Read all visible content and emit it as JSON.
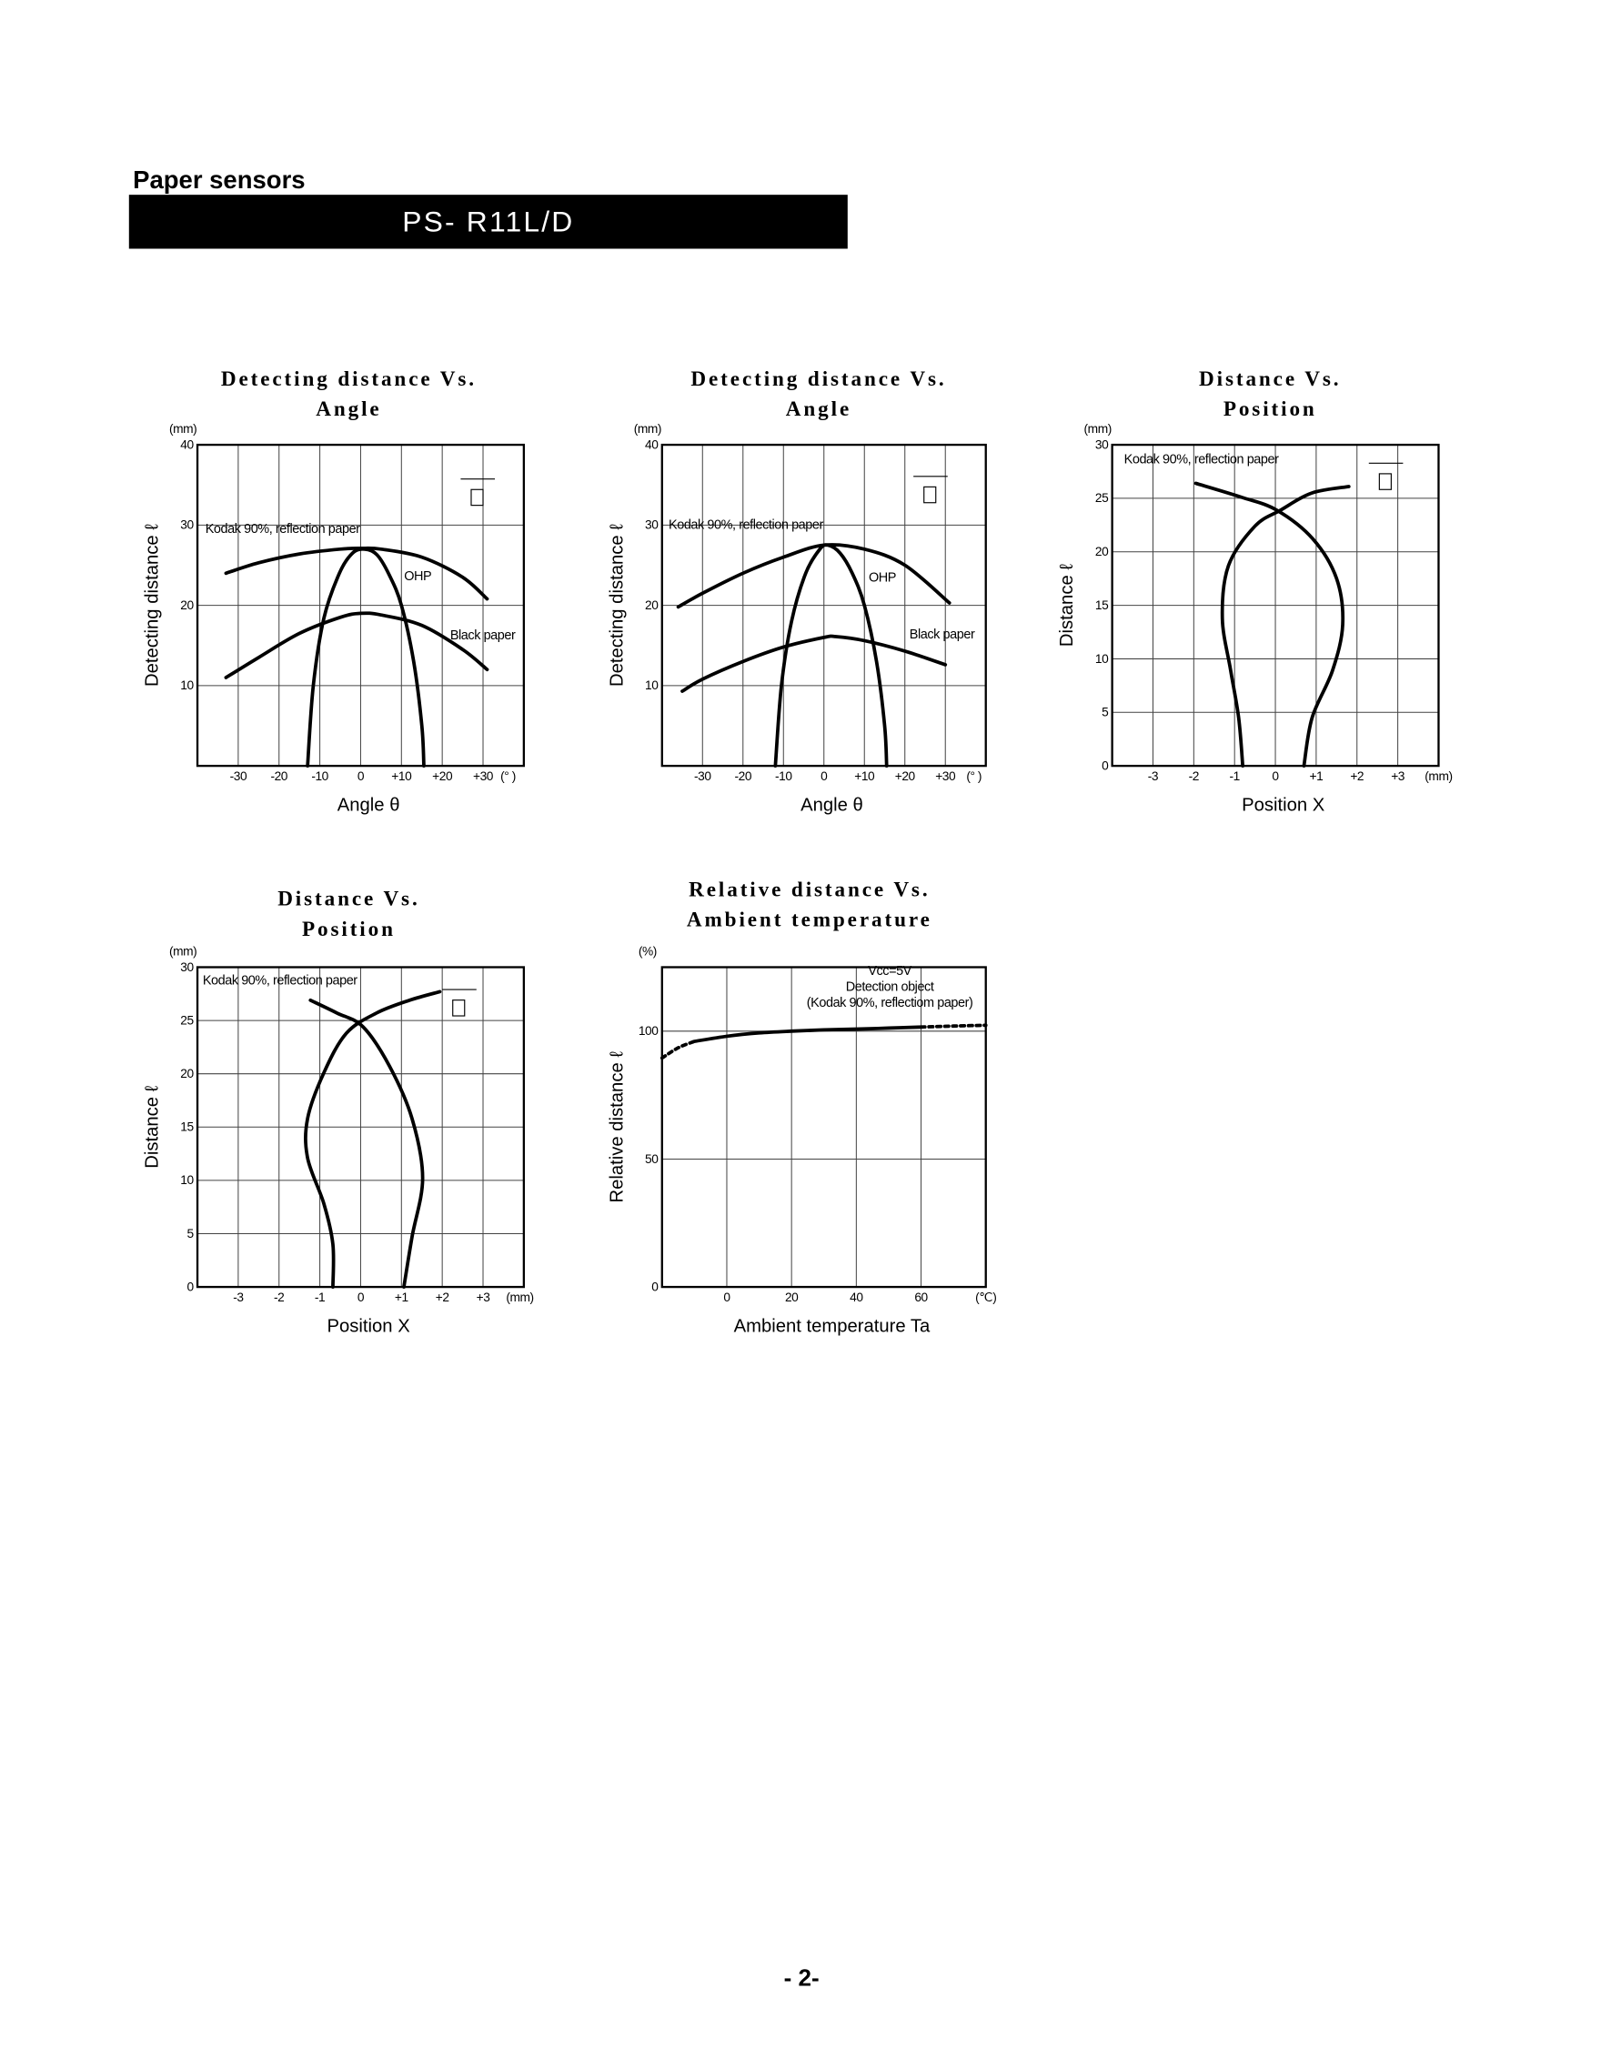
{
  "header": {
    "section": "Paper sensors",
    "model": "PS- R11L/D"
  },
  "chart_data": [
    {
      "type": "line",
      "title": [
        "Detecting distance Vs.",
        "Angle"
      ],
      "x_label": "Angle θ",
      "y_label": "Detecting distance ℓ",
      "y_unit": "(mm)",
      "x_unit": "(° )",
      "color": "#000000",
      "grid": true,
      "xlim": [
        -40,
        40
      ],
      "xticks": [
        -30,
        -20,
        -10,
        0,
        {
          "value": 10,
          "label": "+10"
        },
        {
          "value": 20,
          "label": "+20"
        },
        {
          "value": 30,
          "label": "+30"
        }
      ],
      "ylim": [
        0,
        40
      ],
      "yticks": [
        10,
        20,
        30,
        40
      ],
      "series": [
        {
          "name": "Kodak 90%, reflection paper",
          "x": [
            -33,
            -25,
            -15,
            -5,
            0,
            5,
            15,
            25,
            31
          ],
          "values": [
            24,
            25.3,
            26.4,
            27,
            27.1,
            27,
            26,
            23.5,
            20.8
          ]
        },
        {
          "name": "OHP",
          "x": [
            -13,
            -11.6,
            -9,
            -5.2,
            -2,
            1,
            4,
            7,
            10,
            13,
            15,
            15.5
          ],
          "values": [
            0,
            10,
            18.4,
            24,
            26.5,
            27,
            26.3,
            23.8,
            20,
            13,
            5,
            0
          ]
        },
        {
          "name": "Black paper",
          "x": [
            -33,
            -25,
            -15,
            -5,
            0,
            5,
            15,
            25,
            31
          ],
          "values": [
            11,
            13.5,
            16.5,
            18.5,
            19,
            18.8,
            17.5,
            14.5,
            12
          ]
        }
      ]
    },
    {
      "type": "line",
      "title": [
        "Detecting distance Vs.",
        "Angle"
      ],
      "x_label": "Angle θ",
      "y_label": "Detecting distance ℓ",
      "y_unit": "(mm)",
      "x_unit": "(° )",
      "color": "#000000",
      "grid": true,
      "xlim": [
        -40,
        40
      ],
      "xticks": [
        -30,
        -20,
        -10,
        0,
        {
          "value": 10,
          "label": "+10"
        },
        {
          "value": 20,
          "label": "+20"
        },
        {
          "value": 30,
          "label": "+30"
        }
      ],
      "ylim": [
        0,
        40
      ],
      "yticks": [
        10,
        20,
        30,
        40
      ],
      "series": [
        {
          "name": "Kodak 90%, reflection paper",
          "x": [
            -36,
            -30,
            -20,
            -10,
            0,
            10,
            20,
            31
          ],
          "values": [
            19.8,
            21.5,
            24,
            26,
            27.5,
            27,
            25,
            20.3
          ]
        },
        {
          "name": "OHP",
          "x": [
            -12,
            -10.5,
            -8,
            -4.5,
            -1,
            1,
            4,
            7,
            10,
            13,
            15,
            15.5
          ],
          "values": [
            0,
            10,
            18,
            24,
            27,
            27.5,
            26.5,
            24,
            20,
            13,
            5,
            0
          ]
        },
        {
          "name": "Black paper",
          "x": [
            -35,
            -30,
            -20,
            -10,
            0,
            3,
            10,
            20,
            30
          ],
          "values": [
            9.3,
            10.8,
            13,
            14.8,
            16,
            16.1,
            15.6,
            14.3,
            12.6
          ]
        }
      ]
    },
    {
      "type": "line",
      "title": [
        "Distance Vs.",
        "Position"
      ],
      "x_label": "Position  X",
      "y_label": "Distance  ℓ",
      "y_unit": "(mm)",
      "x_unit": "(mm)",
      "color": "#000000",
      "grid": true,
      "xlim": [
        -4,
        4
      ],
      "xticks": [
        -3,
        -2,
        -1,
        0,
        {
          "value": 1,
          "label": "+1"
        },
        {
          "value": 2,
          "label": "+2"
        },
        {
          "value": 3,
          "label": "+3"
        }
      ],
      "ylim": [
        0,
        30
      ],
      "yticks": [
        0,
        5,
        10,
        15,
        20,
        25,
        30
      ],
      "annotations": [
        "Kodak 90%, reflection paper"
      ],
      "series": [
        {
          "x": [
            -0.8,
            -0.9,
            -1.1,
            -1.3,
            -1.15,
            -0.5,
            0.13,
            0.9,
            1.8
          ],
          "values": [
            0,
            4.5,
            9,
            13.8,
            18.7,
            22.4,
            23.9,
            25.5,
            26.1
          ]
        },
        {
          "x": [
            -1.95,
            -0.83,
            0.03,
            0.92,
            1.5,
            1.65,
            1.4,
            0.9,
            0.7
          ],
          "values": [
            26.4,
            25.1,
            23.9,
            21.2,
            17.5,
            13.2,
            8.9,
            4.5,
            0
          ]
        }
      ]
    },
    {
      "type": "line",
      "title": [
        "Distance Vs.",
        "Position"
      ],
      "x_label": "Position  X",
      "y_label": "Distance  ℓ",
      "y_unit": "(mm)",
      "x_unit": "(mm)",
      "color": "#000000",
      "grid": true,
      "xlim": [
        -4,
        4
      ],
      "xticks": [
        -3,
        -2,
        -1,
        0,
        {
          "value": 1,
          "label": "+1"
        },
        {
          "value": 2,
          "label": "+2"
        },
        {
          "value": 3,
          "label": "+3"
        }
      ],
      "ylim": [
        0,
        30
      ],
      "yticks": [
        0,
        5,
        10,
        15,
        20,
        25,
        30
      ],
      "annotations": [
        "Kodak 90%, reflection paper"
      ],
      "series": [
        {
          "x": [
            -0.68,
            -0.68,
            -0.9,
            -1.3,
            -1.3,
            -0.9,
            -0.35,
            0.39,
            1.2,
            1.94
          ],
          "values": [
            0,
            4,
            7.8,
            12.1,
            15.8,
            20.1,
            23.8,
            25.7,
            26.9,
            27.7
          ]
        },
        {
          "x": [
            -1.23,
            -0.58,
            0.06,
            0.71,
            1.26,
            1.52,
            1.26,
            1.06
          ],
          "values": [
            26.9,
            25.7,
            24.4,
            20.7,
            15.8,
            10.2,
            4.7,
            0
          ]
        }
      ]
    },
    {
      "type": "line",
      "title": [
        "Relative distance Vs.",
        "Ambient temperature"
      ],
      "x_label": "Ambient temperature  Ta",
      "y_label": "Relative distance  ℓ",
      "y_unit": "(%)",
      "x_unit": "(℃)",
      "color": "#000000",
      "grid": true,
      "xlim": [
        -20,
        80
      ],
      "xticks": [
        0,
        20,
        40,
        60
      ],
      "ylim": [
        0,
        125
      ],
      "yticks": [
        0,
        50,
        100
      ],
      "annotations": [
        "Vcc=5V",
        "Detection object",
        "(Kodak 90%, reflectiom paper)"
      ],
      "series": [
        {
          "style": "dashed",
          "x": [
            -20,
            -15,
            -10
          ],
          "values": [
            89.5,
            93.5,
            96
          ]
        },
        {
          "x": [
            -10,
            0,
            10,
            20,
            30,
            40,
            50,
            60
          ],
          "values": [
            96,
            98,
            99.3,
            100,
            100.5,
            100.8,
            101.2,
            101.6
          ]
        },
        {
          "style": "dashed",
          "x": [
            60,
            70,
            80
          ],
          "values": [
            101.6,
            102,
            102.3
          ]
        }
      ]
    }
  ],
  "footer": {
    "page": "- 2-"
  }
}
